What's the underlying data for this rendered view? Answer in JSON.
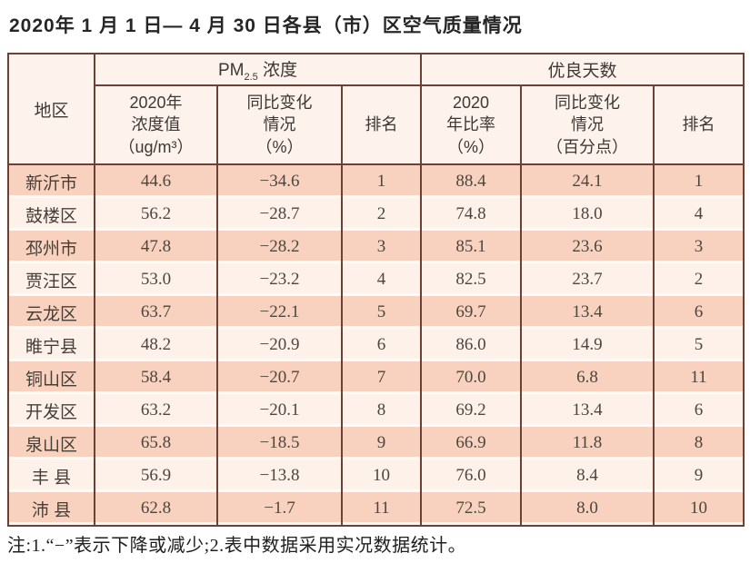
{
  "page": {
    "title": "2020年 1 月 1 日— 4 月 30 日各县（市）区空气质量情况",
    "footnote": "注:1.“−”表示下降或减少;2.表中数据采用实况数据统计。"
  },
  "theme": {
    "border_color": "#6b4036",
    "row_odd_bg": "#f8d2bf",
    "row_even_bg": "#fdf1ea",
    "header_bg": "#fdf2ec",
    "text_color": "#4c463f",
    "title_color": "#262626"
  },
  "table": {
    "corner_header": "地区",
    "group_pm25": {
      "prefix": "PM",
      "sub": "2.5",
      "suffix": " 浓度"
    },
    "group_good_days": "优良天数",
    "columns": [
      "2020年\n浓度值\n（ug/m³）",
      "同比变化\n情况\n（%）",
      "排名",
      "2020\n年比率\n（%）",
      "同比变化\n情况\n（百分点）",
      "排名"
    ],
    "rows": [
      [
        "新沂市",
        "44.6",
        "−34.6",
        "1",
        "88.4",
        "24.1",
        "1"
      ],
      [
        "鼓楼区",
        "56.2",
        "−28.7",
        "2",
        "74.8",
        "18.0",
        "4"
      ],
      [
        "邳州市",
        "47.8",
        "−28.2",
        "3",
        "85.1",
        "23.6",
        "3"
      ],
      [
        "贾汪区",
        "53.0",
        "−23.2",
        "4",
        "82.5",
        "23.7",
        "2"
      ],
      [
        "云龙区",
        "63.7",
        "−22.1",
        "5",
        "69.7",
        "13.4",
        "6"
      ],
      [
        "睢宁县",
        "48.2",
        "−20.9",
        "6",
        "86.0",
        "14.9",
        "5"
      ],
      [
        "铜山区",
        "58.4",
        "−20.7",
        "7",
        "70.0",
        "6.8",
        "11"
      ],
      [
        "开发区",
        "63.2",
        "−20.1",
        "8",
        "69.2",
        "13.4",
        "6"
      ],
      [
        "泉山区",
        "65.8",
        "−18.5",
        "9",
        "66.9",
        "11.8",
        "8"
      ],
      [
        "丰 县",
        "56.9",
        "−13.8",
        "10",
        "76.0",
        "8.4",
        "9"
      ],
      [
        "沛 县",
        "62.8",
        "−1.7",
        "11",
        "72.5",
        "8.0",
        "10"
      ]
    ]
  }
}
